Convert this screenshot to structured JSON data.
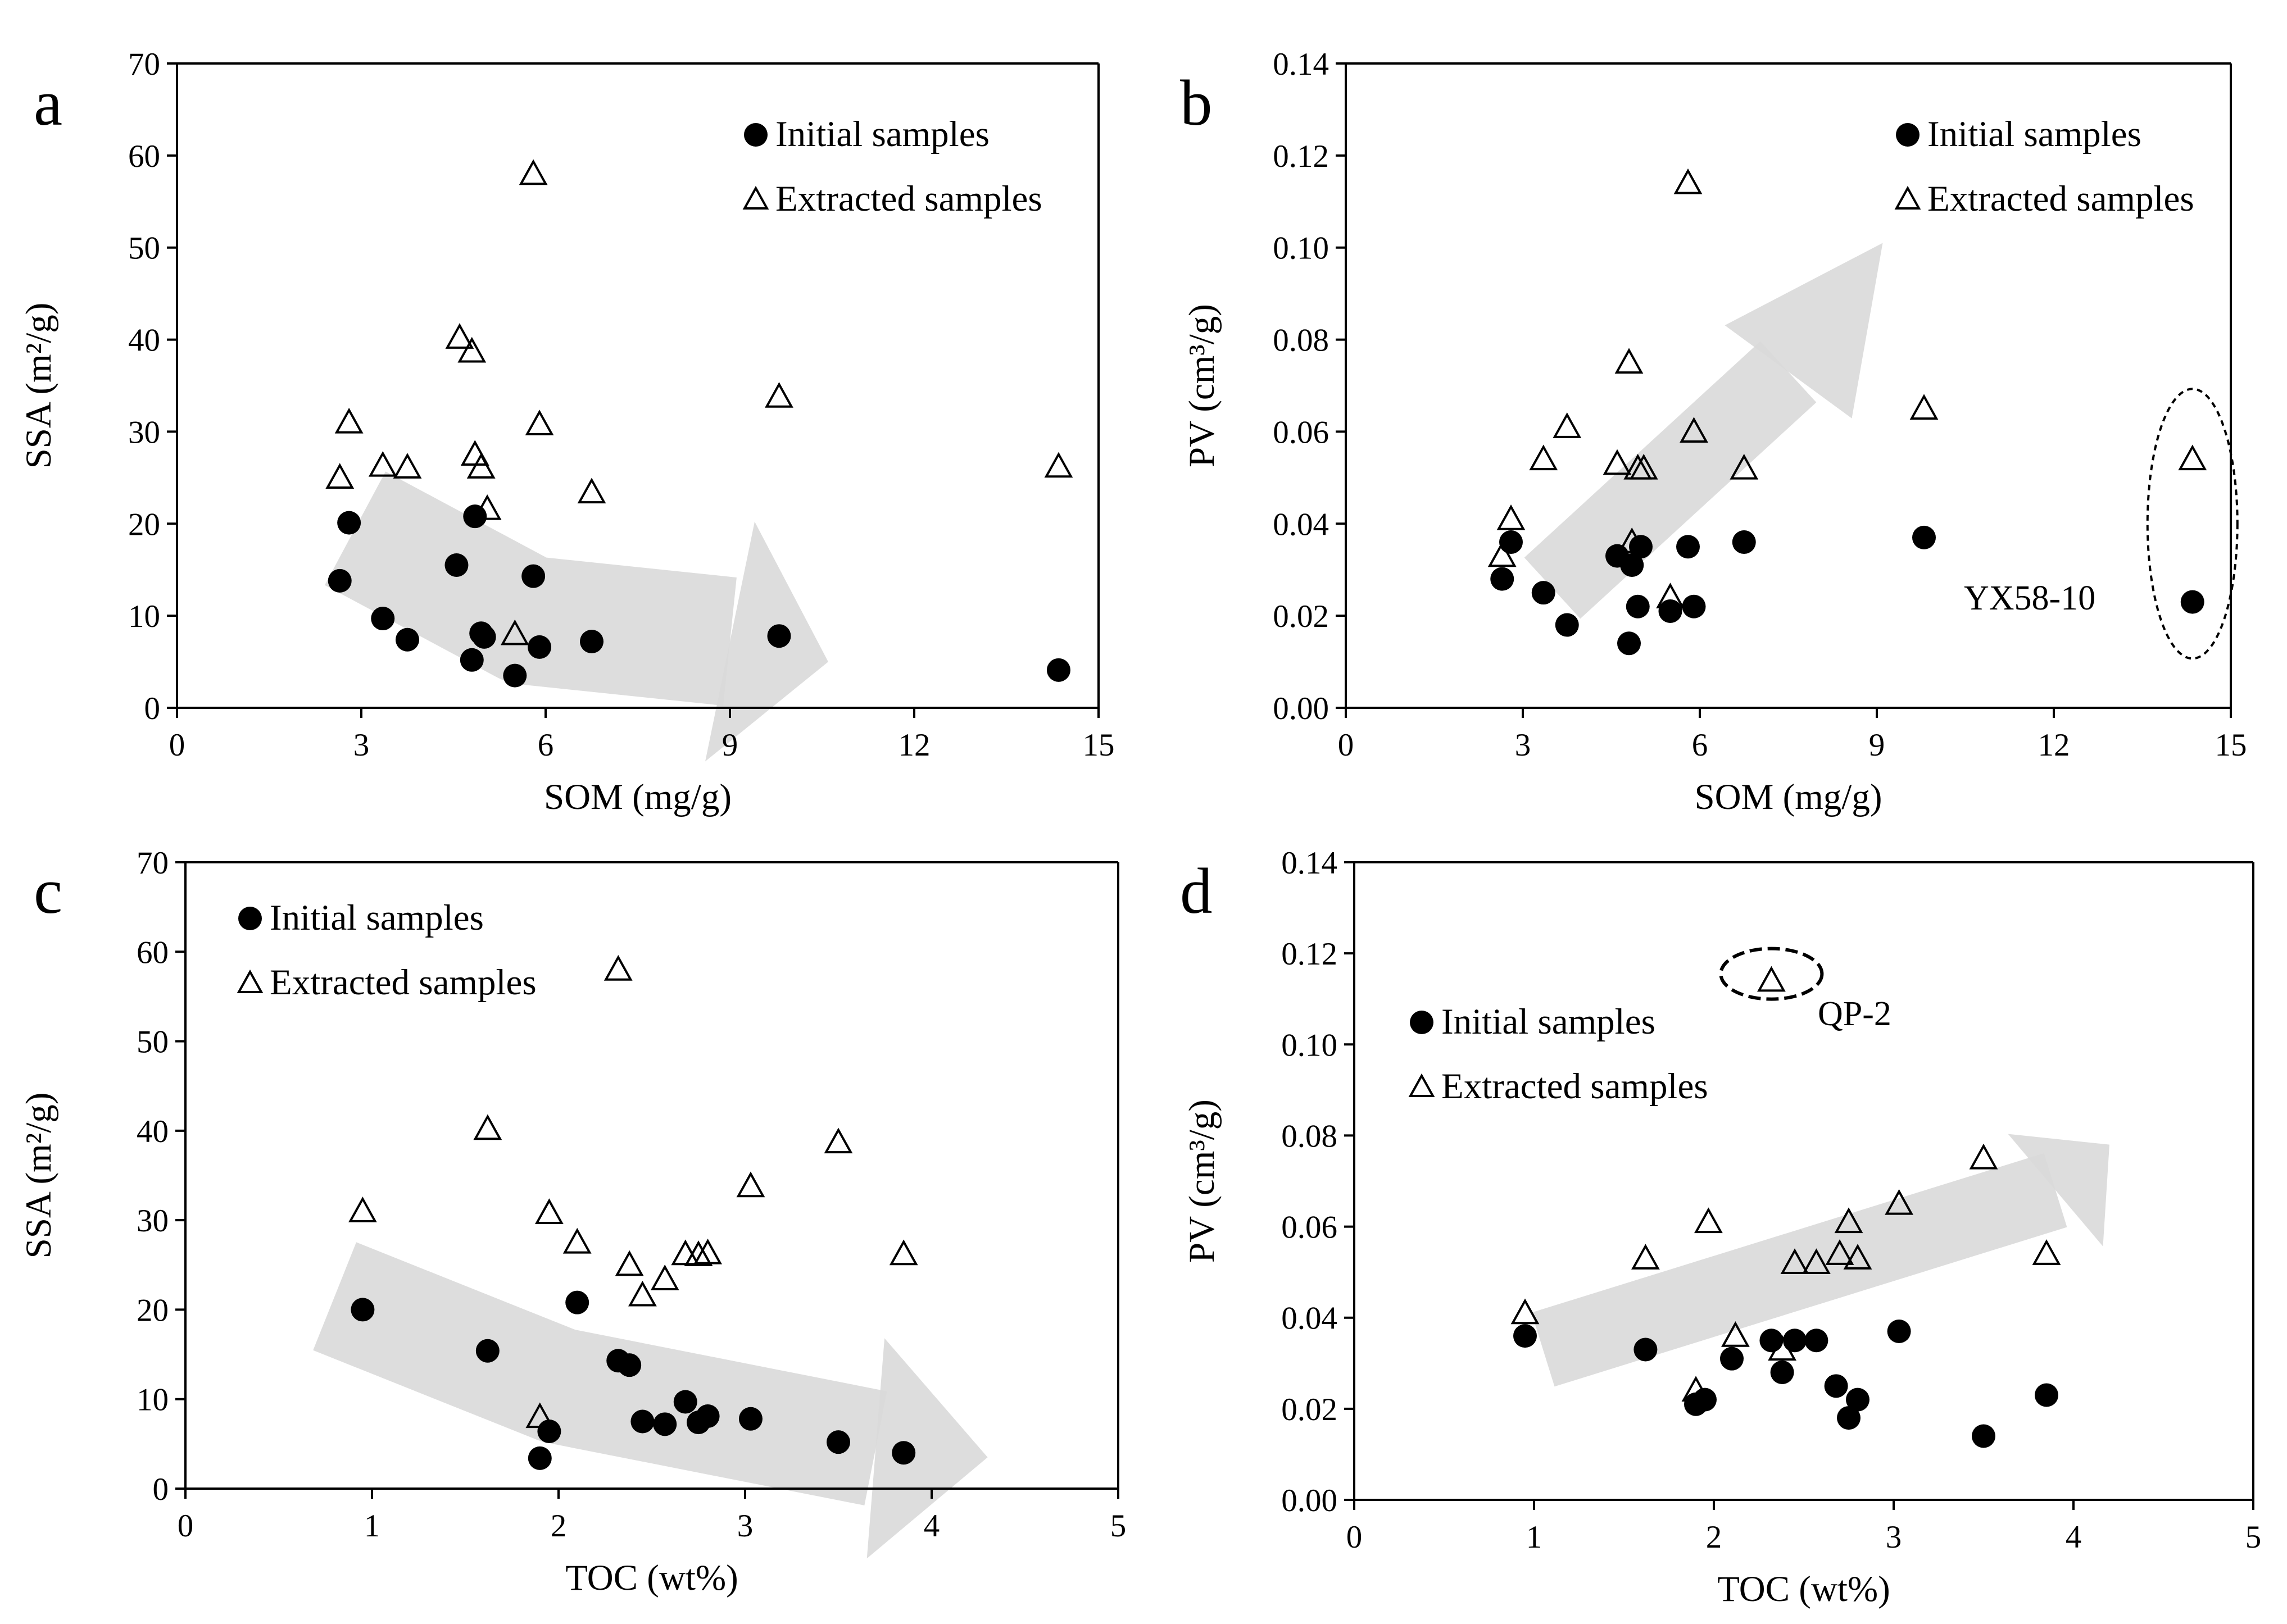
{
  "chart_data": [
    {
      "panel": "a",
      "type": "scatter",
      "xlabel": "SOM (mg/g)",
      "ylabel": "SSA (m²/g)",
      "xlim": [
        0,
        15
      ],
      "ylim": [
        0,
        70
      ],
      "xticks": [
        "0",
        "3",
        "6",
        "9",
        "12",
        "15"
      ],
      "yticks": [
        "0",
        "10",
        "20",
        "30",
        "40",
        "50",
        "60",
        "70"
      ],
      "legend": [
        "Initial samples",
        "Extracted samples"
      ],
      "legend_position": "top-right",
      "trend_arrow": "decreasing",
      "series": [
        {
          "name": "Initial samples",
          "marker": "circle",
          "x": [
            2.65,
            2.8,
            3.35,
            3.75,
            4.55,
            4.8,
            4.85,
            4.95,
            5.0,
            5.5,
            5.8,
            5.9,
            6.75,
            9.8,
            14.35
          ],
          "y": [
            13.8,
            20.1,
            9.7,
            7.4,
            15.5,
            5.2,
            20.8,
            8.1,
            7.7,
            3.5,
            14.3,
            6.6,
            7.2,
            7.8,
            4.1
          ]
        },
        {
          "name": "Extracted samples",
          "marker": "triangle",
          "x": [
            2.65,
            2.8,
            3.35,
            3.75,
            4.6,
            4.8,
            4.85,
            4.95,
            5.05,
            5.5,
            5.8,
            5.9,
            6.75,
            9.8,
            14.35
          ],
          "y": [
            25.0,
            31.0,
            26.3,
            26.1,
            40.2,
            38.7,
            27.5,
            26.1,
            21.6,
            8.0,
            58.0,
            30.8,
            23.4,
            33.8,
            26.2
          ]
        }
      ]
    },
    {
      "panel": "b",
      "type": "scatter",
      "xlabel": "SOM (mg/g)",
      "ylabel": "PV (cm³/g)",
      "xlim": [
        0,
        15
      ],
      "ylim": [
        0,
        0.14
      ],
      "xticks": [
        "0",
        "3",
        "6",
        "9",
        "12",
        "15"
      ],
      "yticks": [
        "0.00",
        "0.02",
        "0.04",
        "0.06",
        "0.08",
        "0.10",
        "0.12",
        "0.14"
      ],
      "legend": [
        "Initial samples",
        "Extracted samples"
      ],
      "legend_position": "top-right",
      "trend_arrow": "increasing",
      "annotation": "YX58-10",
      "series": [
        {
          "name": "Initial samples",
          "marker": "circle",
          "x": [
            2.65,
            2.8,
            3.35,
            3.75,
            4.6,
            4.8,
            4.85,
            4.95,
            5.0,
            5.5,
            5.8,
            5.9,
            6.75,
            9.8,
            14.35
          ],
          "y": [
            0.028,
            0.036,
            0.025,
            0.018,
            0.033,
            0.014,
            0.031,
            0.022,
            0.035,
            0.021,
            0.035,
            0.022,
            0.036,
            0.037,
            0.023
          ]
        },
        {
          "name": "Extracted samples",
          "marker": "triangle",
          "x": [
            2.65,
            2.8,
            3.35,
            3.75,
            4.6,
            4.8,
            4.85,
            4.95,
            5.05,
            5.5,
            5.8,
            5.9,
            6.75,
            9.8,
            14.35
          ],
          "y": [
            0.033,
            0.041,
            0.054,
            0.061,
            0.053,
            0.075,
            0.036,
            0.052,
            0.052,
            0.024,
            0.114,
            0.06,
            0.052,
            0.065,
            0.054
          ]
        }
      ]
    },
    {
      "panel": "c",
      "type": "scatter",
      "xlabel": "TOC (wt%)",
      "ylabel": "SSA (m²/g)",
      "xlim": [
        0,
        5
      ],
      "ylim": [
        0,
        70
      ],
      "xticks": [
        "0",
        "1",
        "2",
        "3",
        "4",
        "5"
      ],
      "yticks": [
        "0",
        "10",
        "20",
        "30",
        "40",
        "50",
        "60",
        "70"
      ],
      "legend": [
        "Initial samples",
        "Extracted samples"
      ],
      "legend_position": "top-left",
      "trend_arrow": "decreasing",
      "series": [
        {
          "name": "Initial samples",
          "marker": "circle",
          "x": [
            0.95,
            1.62,
            1.9,
            1.95,
            2.1,
            2.32,
            2.38,
            2.45,
            2.57,
            2.68,
            2.75,
            2.8,
            3.03,
            3.5,
            3.85
          ],
          "y": [
            20.0,
            15.4,
            3.4,
            6.4,
            20.8,
            14.3,
            13.8,
            7.5,
            7.2,
            9.7,
            7.4,
            8.1,
            7.8,
            5.2,
            4.0
          ]
        },
        {
          "name": "Extracted samples",
          "marker": "triangle",
          "x": [
            0.95,
            1.62,
            1.9,
            1.95,
            2.1,
            2.32,
            2.38,
            2.45,
            2.57,
            2.68,
            2.75,
            2.8,
            3.03,
            3.5,
            3.85
          ],
          "y": [
            31.0,
            40.2,
            8.0,
            30.8,
            27.5,
            58.0,
            25.0,
            21.6,
            23.4,
            26.2,
            26.1,
            26.3,
            33.8,
            38.7,
            26.2
          ]
        }
      ]
    },
    {
      "panel": "d",
      "type": "scatter",
      "xlabel": "TOC (wt%)",
      "ylabel": "PV (cm³/g)",
      "xlim": [
        0,
        5
      ],
      "ylim": [
        0,
        0.14
      ],
      "xticks": [
        "0",
        "1",
        "2",
        "3",
        "4",
        "5"
      ],
      "yticks": [
        "0.00",
        "0.02",
        "0.04",
        "0.06",
        "0.08",
        "0.10",
        "0.12",
        "0.14"
      ],
      "legend": [
        "Initial samples",
        "Extracted samples"
      ],
      "legend_position": "top-left",
      "trend_arrow": "increasing",
      "annotation": "QP-2",
      "series": [
        {
          "name": "Initial samples",
          "marker": "circle",
          "x": [
            0.95,
            1.62,
            1.9,
            1.95,
            2.1,
            2.32,
            2.38,
            2.45,
            2.57,
            2.68,
            2.75,
            2.8,
            3.03,
            3.5,
            3.85
          ],
          "y": [
            0.036,
            0.033,
            0.021,
            0.022,
            0.031,
            0.035,
            0.028,
            0.035,
            0.035,
            0.025,
            0.018,
            0.022,
            0.037,
            0.014,
            0.023
          ]
        },
        {
          "name": "Extracted samples",
          "marker": "triangle",
          "x": [
            0.95,
            1.62,
            1.9,
            1.97,
            2.12,
            2.32,
            2.38,
            2.45,
            2.57,
            2.7,
            2.75,
            2.8,
            3.03,
            3.5,
            3.85
          ],
          "y": [
            0.041,
            0.053,
            0.024,
            0.061,
            0.036,
            0.114,
            0.033,
            0.052,
            0.052,
            0.054,
            0.061,
            0.053,
            0.065,
            0.075,
            0.054
          ]
        }
      ]
    }
  ]
}
